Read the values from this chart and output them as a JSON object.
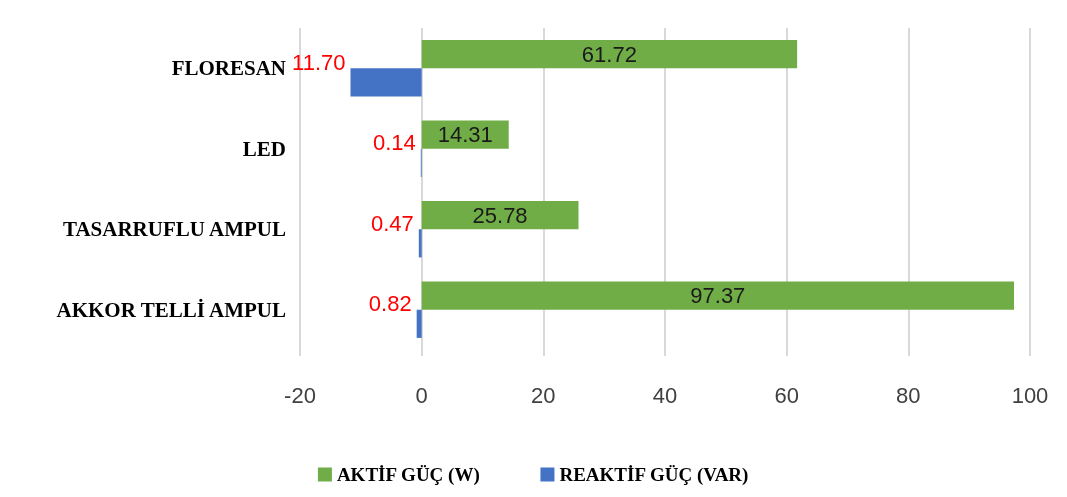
{
  "chart_data": {
    "type": "bar",
    "orientation": "horizontal",
    "categories": [
      "FLORESAN",
      "LED",
      "TASARRUFLU AMPUL",
      "AKKOR TELLİ AMPUL"
    ],
    "series": [
      {
        "name": "AKTİF GÜÇ (W)",
        "color": "#70ad47",
        "values": [
          61.72,
          14.31,
          25.78,
          97.37
        ],
        "value_labels": [
          "61.72",
          "14.31",
          "25.78",
          "97.37"
        ]
      },
      {
        "name": "REAKTİF GÜÇ (VAR)",
        "color": "#4472c4",
        "base": [
          -11.7,
          -0.14,
          -0.47,
          -0.82
        ],
        "values": [
          11.7,
          0.14,
          0.47,
          0.82
        ],
        "value_labels": [
          "11.70",
          "0.14",
          "0.47",
          "0.82"
        ]
      }
    ],
    "xlim": [
      -20,
      100
    ],
    "xticks": [
      -20,
      0,
      20,
      40,
      60,
      80,
      100
    ],
    "grid": "x",
    "legend": "bottom"
  }
}
